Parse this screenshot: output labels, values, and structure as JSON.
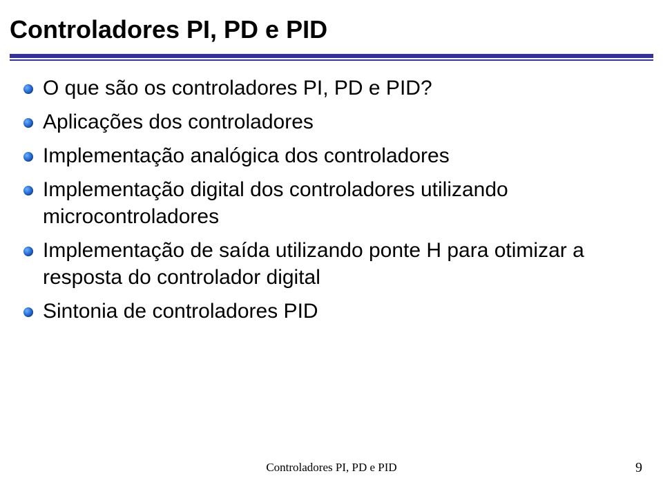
{
  "title": "Controladores PI, PD e PID",
  "bullets": [
    "O que são os controladores PI, PD e PID?",
    "Aplicações dos controladores",
    "Implementação analógica dos controladores",
    "Implementação digital dos controladores utilizando microcontroladores",
    "Implementação de saída utilizando ponte H para otimizar a resposta do controlador digital",
    "Sintonia de controladores PID"
  ],
  "footer": "Controladores PI, PD e PID",
  "page_number": "9",
  "colors": {
    "rule": "#333399",
    "text": "#000000",
    "background": "#ffffff"
  }
}
